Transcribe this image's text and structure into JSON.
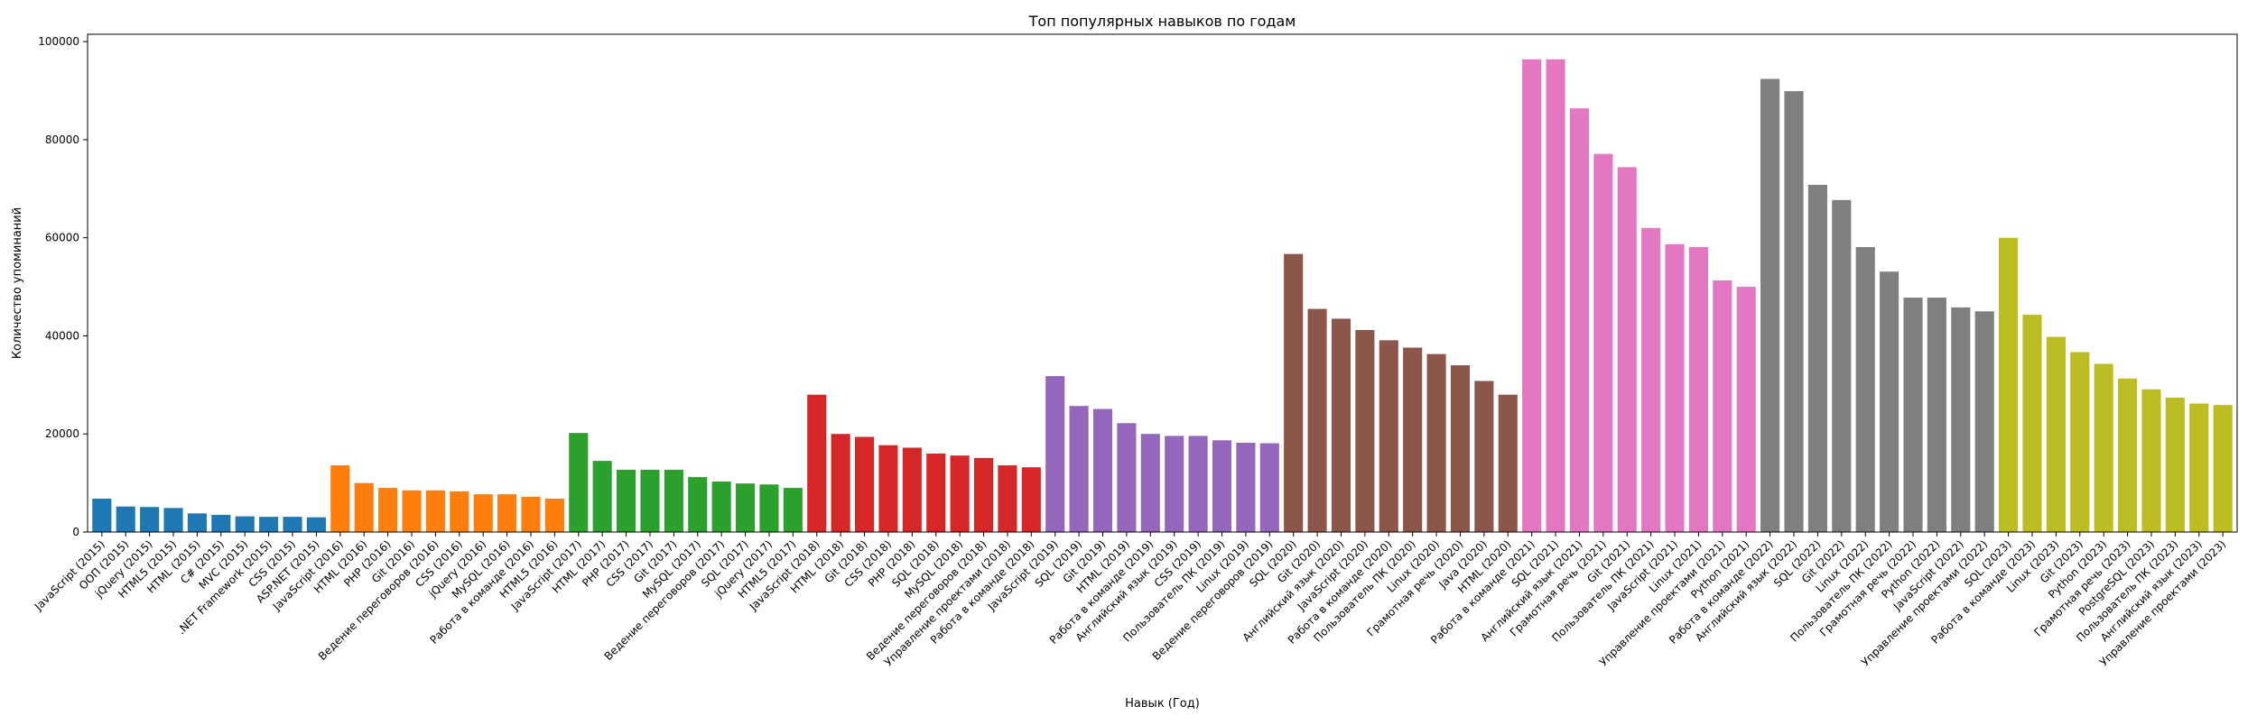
{
  "chart_data": {
    "type": "bar",
    "title": "Топ популярных навыков по годам",
    "xlabel": "Навык (Год)",
    "ylabel": "Количество упоминаний",
    "ylim": [
      0,
      101500
    ],
    "yticks": [
      0,
      20000,
      40000,
      60000,
      80000,
      100000
    ],
    "ytick_labels": [
      "0",
      "20000",
      "40000",
      "60000",
      "80000",
      "100000"
    ],
    "grid": false,
    "legend": "none",
    "colors": {
      "2015": "#1f77b4",
      "2016": "#ff7f0e",
      "2017": "#2ca02c",
      "2018": "#d62728",
      "2019": "#9467bd",
      "2020": "#8c564b",
      "2021": "#e377c2",
      "2022": "#7f7f7f",
      "2023": "#bcbd22"
    },
    "categories": [
      "JavaScript (2015)",
      "ООП (2015)",
      "jQuery (2015)",
      "HTML5 (2015)",
      "HTML (2015)",
      "C# (2015)",
      "MVC (2015)",
      ".NET Framework (2015)",
      "CSS (2015)",
      "ASP.NET (2015)",
      "JavaScript (2016)",
      "HTML (2016)",
      "PHP (2016)",
      "Git (2016)",
      "Ведение переговоров (2016)",
      "CSS (2016)",
      "jQuery (2016)",
      "MySQL (2016)",
      "Работа в команде (2016)",
      "HTML5 (2016)",
      "JavaScript (2017)",
      "HTML (2017)",
      "PHP (2017)",
      "CSS (2017)",
      "Git (2017)",
      "MySQL (2017)",
      "Ведение переговоров (2017)",
      "SQL (2017)",
      "jQuery (2017)",
      "HTML5 (2017)",
      "JavaScript (2018)",
      "HTML (2018)",
      "Git (2018)",
      "CSS (2018)",
      "PHP (2018)",
      "SQL (2018)",
      "MySQL (2018)",
      "Ведение переговоров (2018)",
      "Управление проектами (2018)",
      "Работа в команде (2018)",
      "JavaScript (2019)",
      "SQL (2019)",
      "Git (2019)",
      "HTML (2019)",
      "Работа в команде (2019)",
      "Английский язык (2019)",
      "CSS (2019)",
      "Пользователь ПК (2019)",
      "Linux (2019)",
      "Ведение переговоров (2019)",
      "SQL (2020)",
      "Git (2020)",
      "Английский язык (2020)",
      "JavaScript (2020)",
      "Работа в команде (2020)",
      "Пользователь ПК (2020)",
      "Linux (2020)",
      "Грамотная речь (2020)",
      "Java (2020)",
      "HTML (2020)",
      "Работа в команде (2021)",
      "SQL (2021)",
      "Английский язык (2021)",
      "Грамотная речь (2021)",
      "Git (2021)",
      "Пользователь ПК (2021)",
      "JavaScript (2021)",
      "Linux (2021)",
      "Управление проектами (2021)",
      "Python (2021)",
      "Работа в команде (2022)",
      "Английский язык (2022)",
      "SQL (2022)",
      "Git (2022)",
      "Linux (2022)",
      "Пользователь ПК (2022)",
      "Грамотная речь (2022)",
      "Python (2022)",
      "JavaScript (2022)",
      "Управление проектами (2022)",
      "SQL (2023)",
      "Работа в команде (2023)",
      "Linux (2023)",
      "Git (2023)",
      "Python (2023)",
      "Грамотная речь (2023)",
      "PostgreSQL (2023)",
      "Пользователь ПК (2023)",
      "Английский язык (2023)",
      "Управление проектами (2023)"
    ],
    "values": [
      6800,
      5200,
      5100,
      4900,
      3800,
      3500,
      3200,
      3100,
      3100,
      3000,
      13600,
      10000,
      9000,
      8500,
      8500,
      8300,
      7700,
      7700,
      7200,
      6800,
      20200,
      14500,
      12700,
      12700,
      12700,
      11200,
      10300,
      9900,
      9700,
      9000,
      28000,
      20000,
      19400,
      17700,
      17200,
      16000,
      15600,
      15100,
      13600,
      13200,
      31800,
      25700,
      25100,
      22200,
      20000,
      19600,
      19600,
      18700,
      18200,
      18100,
      56700,
      45500,
      43500,
      41200,
      39100,
      37600,
      36300,
      34000,
      30800,
      28000,
      96400,
      96400,
      86400,
      77100,
      74400,
      62000,
      58700,
      58100,
      51300,
      50000,
      92400,
      89900,
      70800,
      67700,
      58100,
      53100,
      47800,
      47800,
      45800,
      45000,
      60000,
      44300,
      39800,
      36700,
      34300,
      31300,
      29100,
      27400,
      26200,
      25900
    ],
    "group_size": 10,
    "years": [
      "2015",
      "2016",
      "2017",
      "2018",
      "2019",
      "2020",
      "2021",
      "2022",
      "2023"
    ]
  }
}
